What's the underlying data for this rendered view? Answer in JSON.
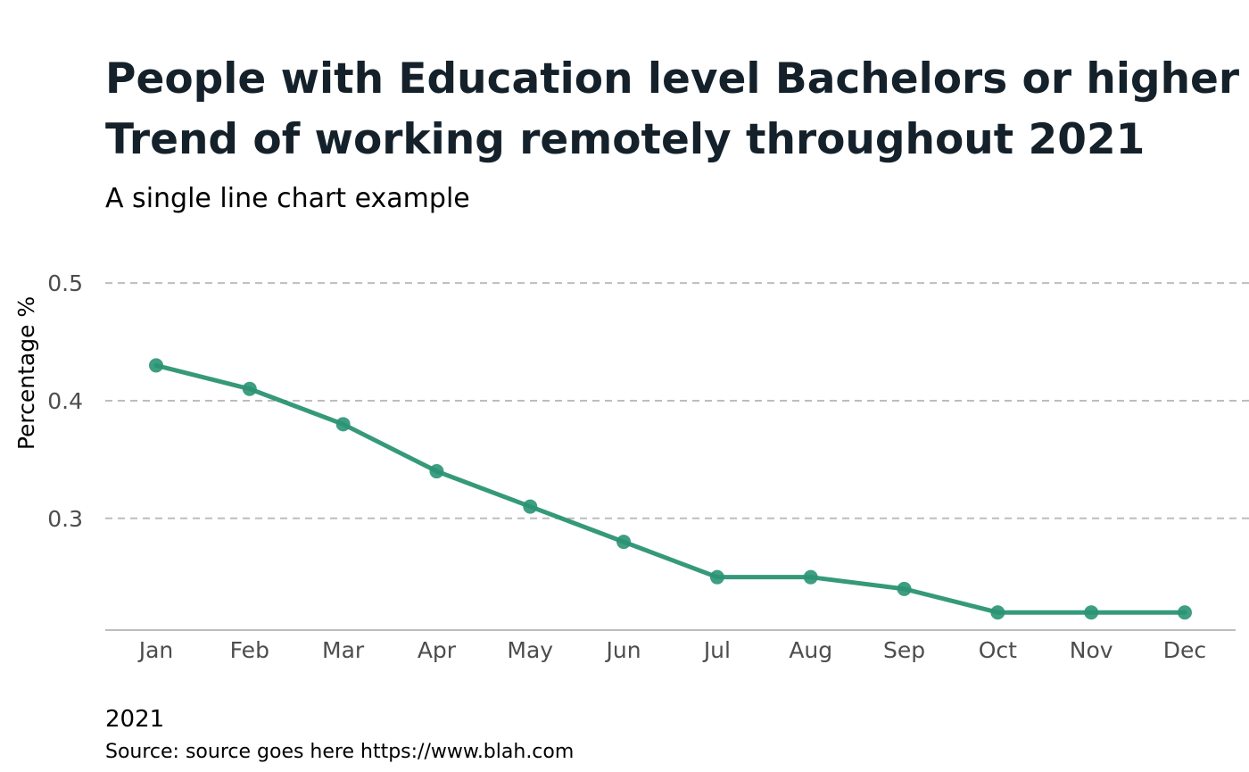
{
  "chart_data": {
    "type": "line",
    "title": [
      "People with Education level Bachelors or higher",
      "Trend of working remotely throughout 2021"
    ],
    "subtitle": "A single line chart example",
    "xlabel": "2021",
    "ylabel": "Percentage %",
    "source": "Source: source goes here https://www.blah.com",
    "categories": [
      "Jan",
      "Feb",
      "Mar",
      "Apr",
      "May",
      "Jun",
      "Jul",
      "Aug",
      "Sep",
      "Oct",
      "Nov",
      "Dec"
    ],
    "series": [
      {
        "values": [
          0.43,
          0.41,
          0.38,
          0.34,
          0.31,
          0.28,
          0.25,
          0.25,
          0.24,
          0.22,
          0.22,
          0.22
        ],
        "color": "#2a9473"
      }
    ],
    "yticks": [
      0.3,
      0.4,
      0.5
    ],
    "ylim": [
      0.205,
      0.513
    ],
    "grid": "horizontal dashed",
    "legend": "none"
  }
}
